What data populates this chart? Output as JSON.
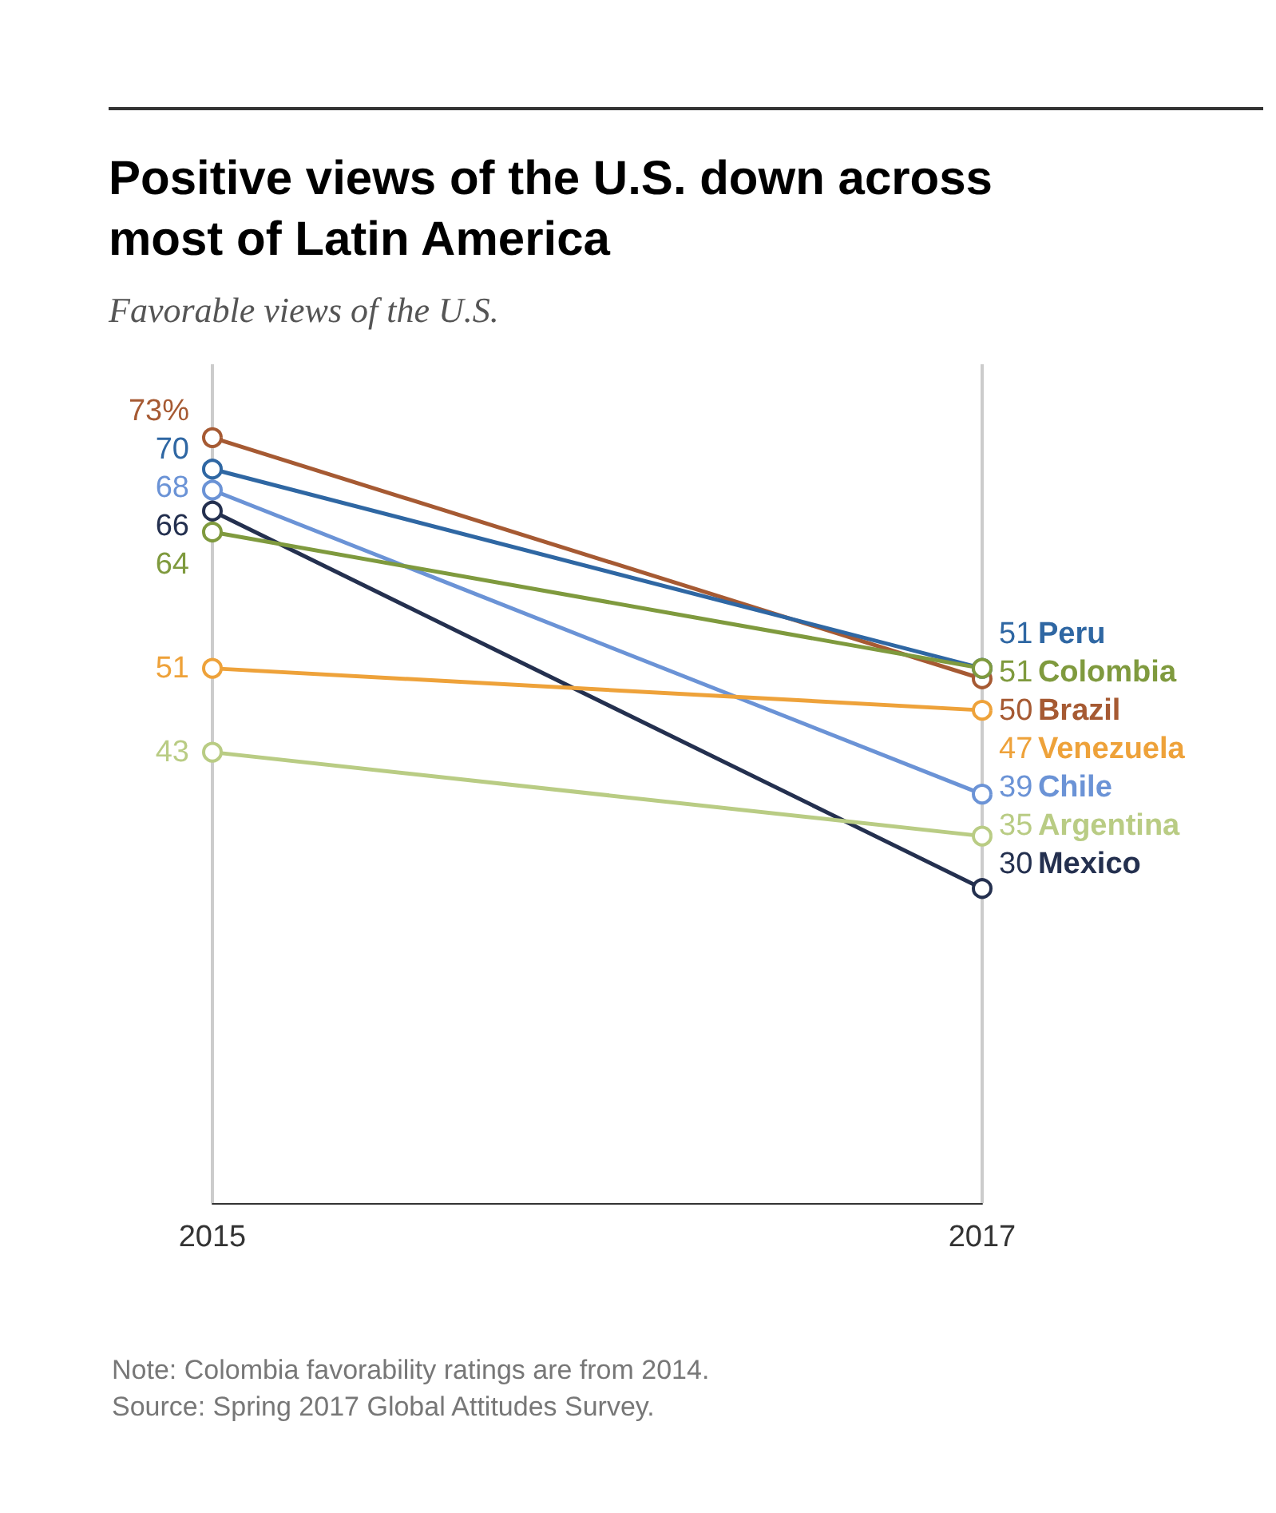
{
  "chart_data": {
    "type": "line",
    "title": "Positive views of the U.S. down across\nmost of Latin America",
    "subtitle": "Favorable views of the U.S.",
    "categories": [
      "2015",
      "2017"
    ],
    "marker": "circle",
    "grid": "x",
    "legend": false,
    "series": [
      {
        "name": "Brazil",
        "color": "#a65a33",
        "values": [
          73,
          50
        ],
        "value_labels": [
          "73%",
          "50"
        ]
      },
      {
        "name": "Peru",
        "color": "#2f67a3",
        "values": [
          70,
          51
        ],
        "value_labels": [
          "70",
          "51"
        ]
      },
      {
        "name": "Chile",
        "color": "#6b93d6",
        "values": [
          68,
          39
        ],
        "value_labels": [
          "68",
          "39"
        ]
      },
      {
        "name": "Mexico",
        "color": "#24304f",
        "values": [
          66,
          30
        ],
        "value_labels": [
          "66",
          "30"
        ]
      },
      {
        "name": "Colombia",
        "color": "#7f9a3e",
        "values": [
          64,
          51
        ],
        "value_labels": [
          "64",
          "51"
        ]
      },
      {
        "name": "Venezuela",
        "color": "#eea23a",
        "values": [
          51,
          47
        ],
        "value_labels": [
          "51",
          "47"
        ]
      },
      {
        "name": "Argentina",
        "color": "#b9cc84",
        "values": [
          43,
          35
        ],
        "value_labels": [
          "43",
          "35"
        ]
      }
    ],
    "annotations": [
      "Note: Colombia favorability ratings are from 2014.\nSource: Spring 2017 Global Attitudes Survey."
    ]
  }
}
